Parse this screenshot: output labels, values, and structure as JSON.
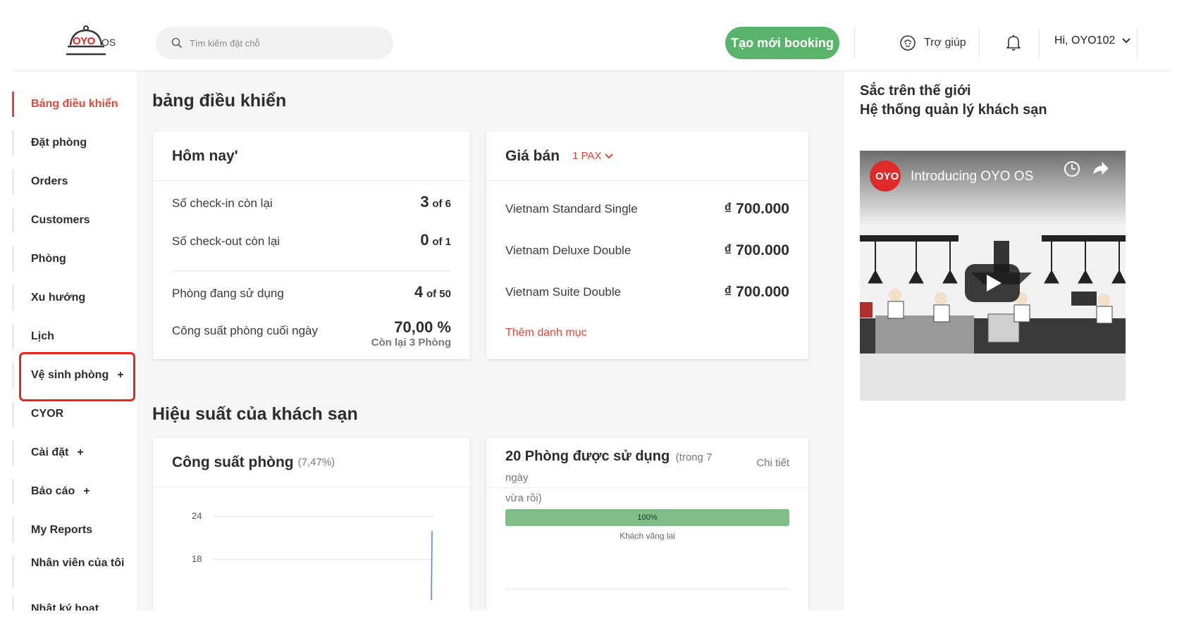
{
  "header": {
    "logo_text": "OYO",
    "logo_suffix": "OS",
    "search_placeholder": "Tìm kiếm đặt chỗ",
    "create_booking_label": "Tạo mới booking",
    "help_label": "Trợ giúp",
    "user_greeting": "Hi, OYO102"
  },
  "sidebar": {
    "items": [
      {
        "label": "Bảng điều khiển",
        "active": true
      },
      {
        "label": "Đặt phòng"
      },
      {
        "label": "Orders"
      },
      {
        "label": "Customers"
      },
      {
        "label": "Phòng"
      },
      {
        "label": "Xu hướng"
      },
      {
        "label": "Lịch"
      },
      {
        "label": "Vệ sinh phòng",
        "expand": "+"
      },
      {
        "label": "CYOR"
      },
      {
        "label": "Cài đặt",
        "expand": "+"
      },
      {
        "label": "Báo cáo",
        "expand": "+"
      },
      {
        "label": "My Reports"
      },
      {
        "label": "Nhân viên của tôi"
      },
      {
        "label": "Nhật ký hoạt"
      }
    ]
  },
  "main": {
    "title": "bảng điều khiển",
    "today": {
      "title": "Hôm nay'",
      "checkin_label": "Số check-in còn lại",
      "checkin_value": "3",
      "checkin_total": "of 6",
      "checkout_label": "Số check-out còn lại",
      "checkout_value": "0",
      "checkout_total": "of 1",
      "occupied_label": "Phòng đang sử dụng",
      "occupied_value": "4",
      "occupied_total": "of 50",
      "eod_label": "Công suất phòng cuối ngày",
      "eod_value": "70,00 %",
      "eod_sub": "Còn lại 3 Phòng"
    },
    "pricing": {
      "title": "Giá bán",
      "pax_label": "1 PAX",
      "rooms": [
        {
          "name": "Vietnam Standard Single",
          "price": "₫ 700.000"
        },
        {
          "name": "Vietnam Deluxe Double",
          "price": "₫ 700.000"
        },
        {
          "name": "Vietnam Suite Double",
          "price": "₫ 700.000"
        }
      ],
      "add_category_label": "Thêm danh mục"
    },
    "performance_title": "Hiệu suất của khách sạn",
    "occupancy": {
      "title": "Công suất phòng",
      "percent": "(7,47%)",
      "y_ticks": [
        "24",
        "18"
      ]
    },
    "rooms_used": {
      "title": "20 Phòng được sử dụng",
      "period_line1": "(trong 7 ngày",
      "period_line2": "vừa rồi)",
      "detail_label": "Chi tiết",
      "bar_percent_label": "100%",
      "bar_fill_fraction": 1.0,
      "bar_color": "#7fbf87",
      "segment_label": "Khách vãng lai"
    }
  },
  "right_panel": {
    "line1": "Sắc trên thế giới",
    "line2": "Hệ thống quản lý khách sạn",
    "video_title": "Introducing OYO OS",
    "video_logo": "OYO"
  },
  "colors": {
    "accent_red": "#e04a3b",
    "cta_green": "#5ab36a",
    "highlight_red": "#e8261e"
  }
}
